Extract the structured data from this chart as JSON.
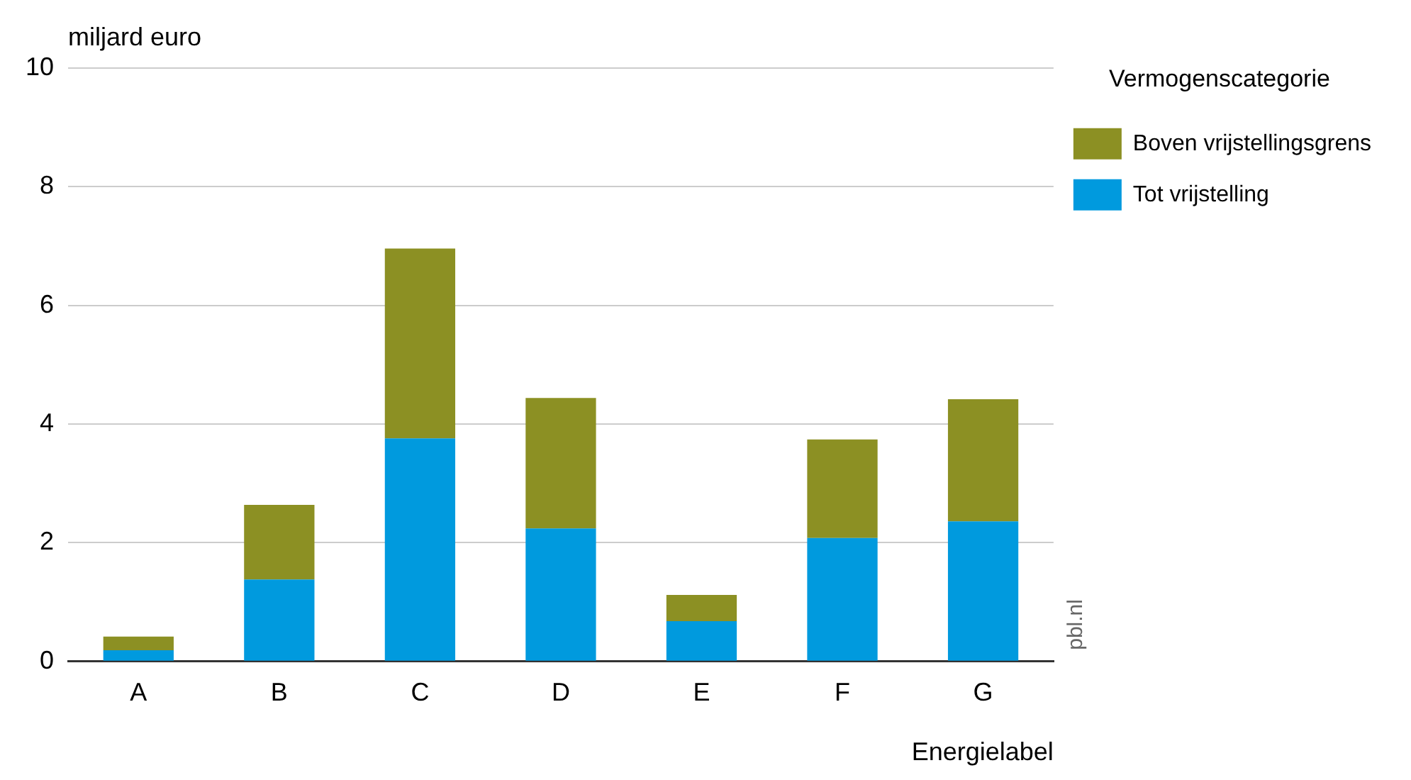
{
  "chart_data": {
    "type": "bar",
    "stacked": true,
    "ylabel": "miljard euro",
    "xlabel": "Energielabel",
    "legend_title": "Vermogenscategorie",
    "legend": "top right",
    "grid": "y",
    "categories": [
      "A",
      "B",
      "C",
      "D",
      "E",
      "F",
      "G"
    ],
    "ylim": [
      0,
      10
    ],
    "yticks": [
      0,
      2,
      4,
      6,
      8,
      10
    ],
    "series": [
      {
        "name": "Tot vrijstelling",
        "color": "#009ade",
        "values": [
          0.19,
          1.38,
          3.76,
          2.24,
          0.68,
          2.08,
          2.36
        ]
      },
      {
        "name": "Boven vrijstellingsgrens",
        "color": "#8c9023",
        "values": [
          0.23,
          1.26,
          3.2,
          2.2,
          0.44,
          1.66,
          2.06
        ]
      }
    ],
    "annotations": [
      "pbl.nl"
    ]
  }
}
